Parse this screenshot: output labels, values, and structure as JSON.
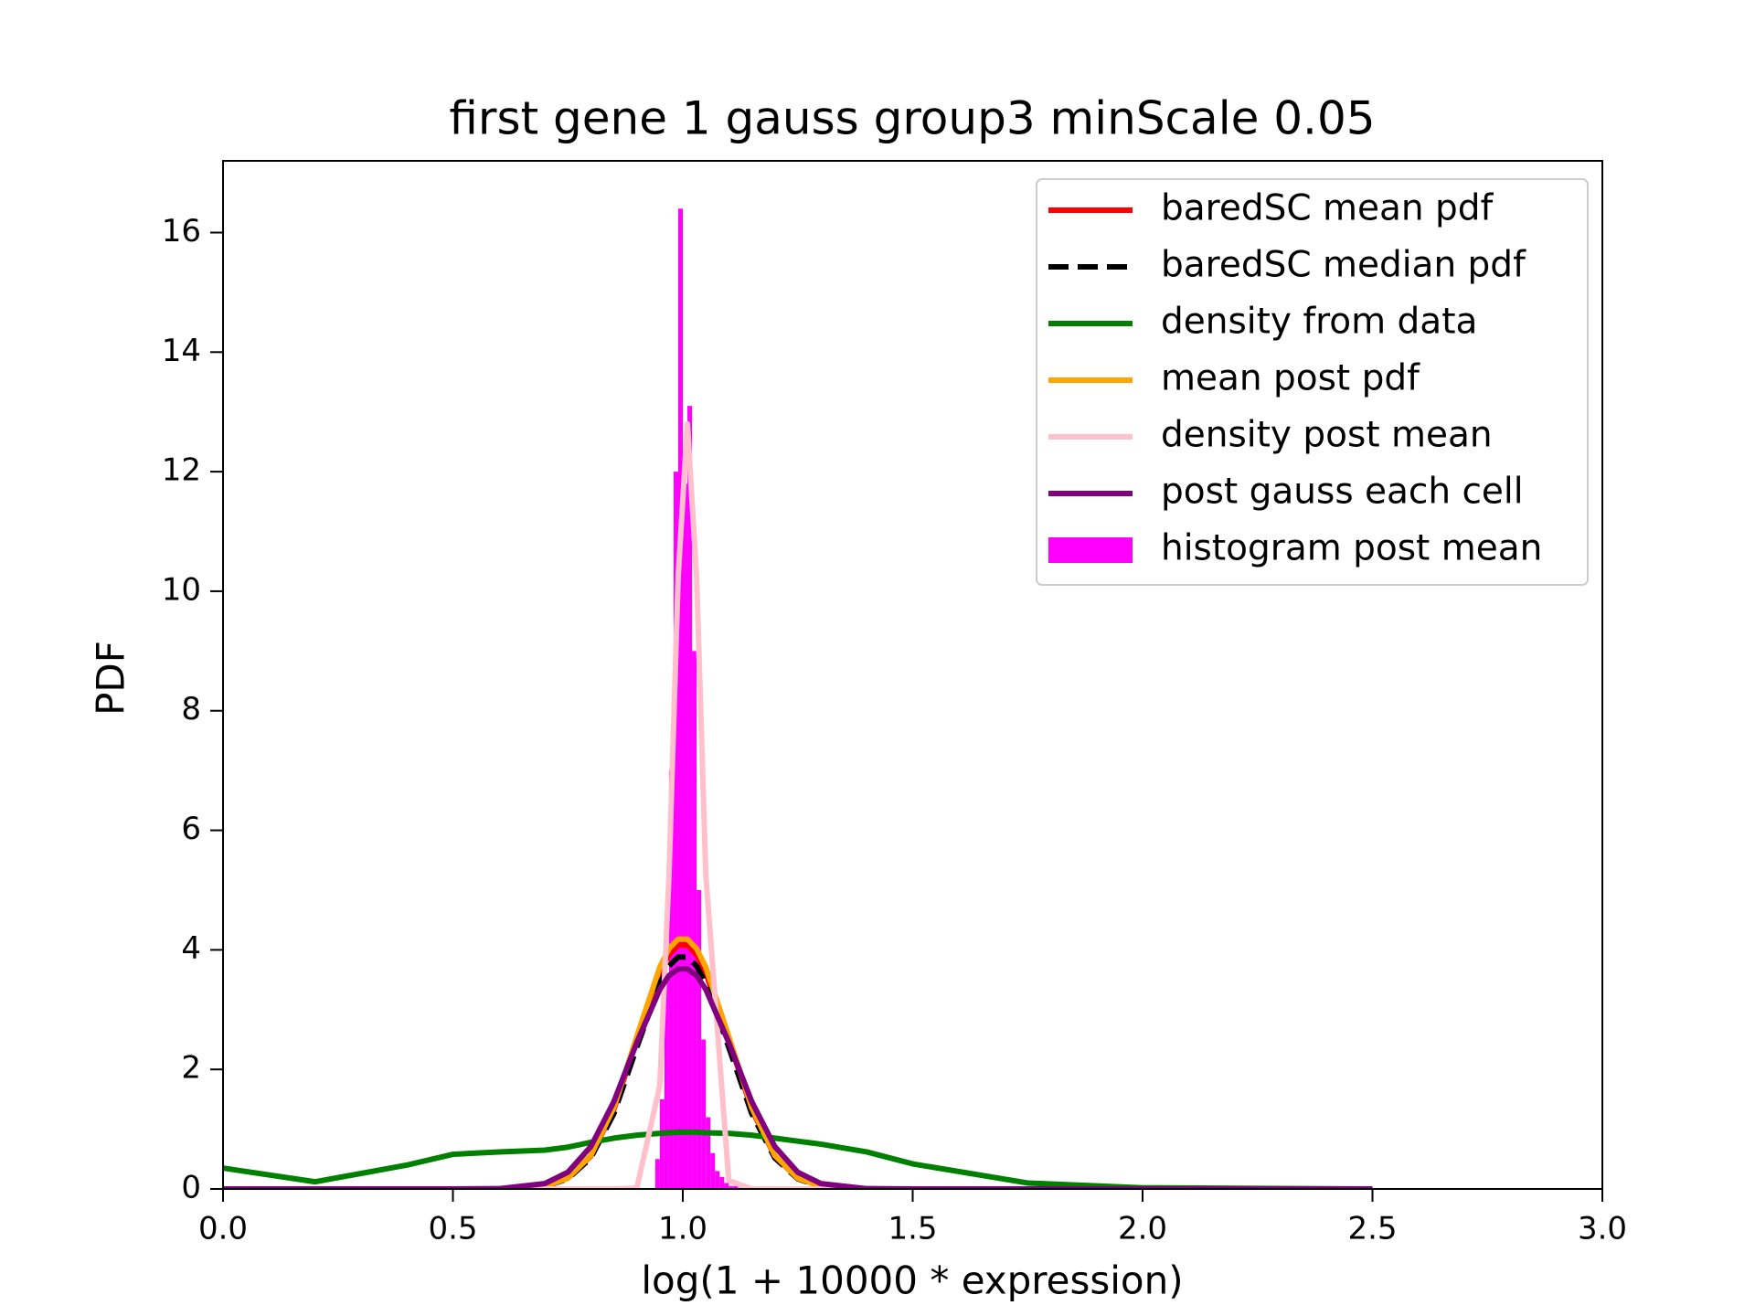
{
  "chart_data": {
    "type": "line",
    "title": "first gene 1 gauss group3 minScale 0.05",
    "xlabel": "log(1 + 10000 * expression)",
    "ylabel": "PDF",
    "xlim": [
      0,
      3
    ],
    "ylim": [
      0,
      17.2
    ],
    "xticks": [
      {
        "value": 0,
        "label": "0.0"
      },
      0.5,
      {
        "value": 1,
        "label": "1.0"
      },
      1.5,
      {
        "value": 2,
        "label": "2.0"
      },
      2.5,
      {
        "value": 3,
        "label": "3.0"
      }
    ],
    "yticks": [
      0,
      2,
      4,
      6,
      8,
      10,
      12,
      14,
      16
    ],
    "legend": "upper right",
    "x": [
      0,
      0.2,
      0.4,
      0.5,
      0.6,
      0.7,
      0.75,
      0.8,
      0.85,
      0.9,
      0.95,
      0.97,
      0.99,
      1.01,
      1.03,
      1.05,
      1.1,
      1.15,
      1.2,
      1.25,
      1.3,
      1.4,
      1.5,
      1.75,
      2.0,
      2.5
    ],
    "series": [
      {
        "name": "baredSC mean pdf",
        "color": "#ff0000",
        "linestyle": "solid",
        "values": [
          0,
          0,
          0,
          0,
          0.001,
          0.045,
          0.18,
          0.55,
          1.33,
          2.49,
          3.62,
          3.92,
          4.08,
          4.08,
          3.92,
          3.62,
          2.49,
          1.33,
          0.55,
          0.18,
          0.045,
          0.001,
          0,
          0,
          0,
          0
        ]
      },
      {
        "name": "baredSC median pdf",
        "color": "#000000",
        "linestyle": "dashed",
        "values": [
          0,
          0,
          0,
          0,
          0.001,
          0.043,
          0.17,
          0.52,
          1.26,
          2.37,
          3.44,
          3.73,
          3.88,
          3.88,
          3.73,
          3.44,
          2.37,
          1.26,
          0.52,
          0.17,
          0.043,
          0.001,
          0,
          0,
          0,
          0
        ]
      },
      {
        "name": "density from data",
        "color": "#008000",
        "linestyle": "solid",
        "values": [
          0.35,
          0.12,
          0.4,
          0.58,
          0.62,
          0.65,
          0.7,
          0.78,
          0.85,
          0.9,
          0.93,
          0.94,
          0.95,
          0.95,
          0.95,
          0.94,
          0.93,
          0.9,
          0.85,
          0.8,
          0.75,
          0.62,
          0.42,
          0.1,
          0.02,
          0
        ]
      },
      {
        "name": "mean post pdf",
        "color": "#ffa500",
        "linestyle": "solid",
        "values": [
          0,
          0,
          0,
          0,
          0.001,
          0.046,
          0.18,
          0.56,
          1.36,
          2.55,
          3.71,
          4.02,
          4.18,
          4.18,
          4.02,
          3.71,
          2.55,
          1.36,
          0.56,
          0.18,
          0.046,
          0.001,
          0,
          0,
          0,
          0
        ]
      },
      {
        "name": "density post mean",
        "color": "#ffc0cb",
        "linestyle": "solid",
        "values": [
          0,
          0,
          0,
          0,
          0,
          0,
          0,
          0,
          0,
          0.016,
          1.73,
          5.26,
          10.25,
          12.8,
          10.25,
          5.26,
          0.14,
          0,
          0,
          0,
          0,
          0,
          0,
          0,
          0,
          0
        ]
      },
      {
        "name": "post gauss each cell",
        "color": "#800080",
        "linestyle": "solid",
        "values": [
          0,
          0,
          0,
          0,
          0.005,
          0.09,
          0.28,
          0.71,
          1.46,
          2.45,
          3.34,
          3.57,
          3.68,
          3.68,
          3.57,
          3.34,
          2.45,
          1.46,
          0.71,
          0.28,
          0.09,
          0.005,
          0,
          0,
          0,
          0
        ]
      }
    ],
    "histogram": {
      "name": "histogram post mean",
      "color": "#ff00ff",
      "bins": [
        0.94,
        0.95,
        0.96,
        0.97,
        0.98,
        0.99,
        1.0,
        1.01,
        1.02,
        1.03,
        1.04,
        1.05,
        1.06,
        1.07,
        1.08,
        1.09,
        1.1,
        1.11,
        1.12,
        1.13
      ],
      "values": [
        0.5,
        1.5,
        3.5,
        7,
        12,
        16.4,
        11.8,
        13.1,
        9,
        5,
        2.5,
        1.2,
        0.6,
        0.3,
        0.2,
        0.1,
        0.05,
        0.05,
        0.02
      ]
    }
  }
}
